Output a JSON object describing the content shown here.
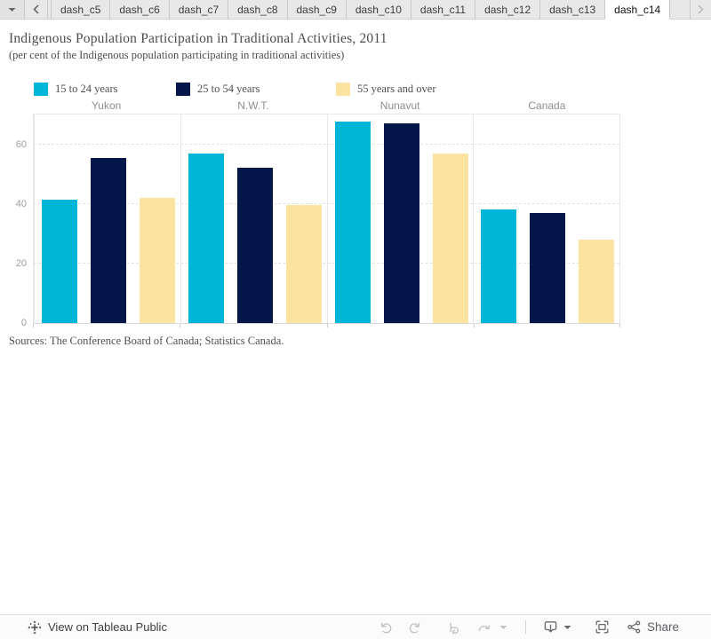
{
  "tab_bar": {
    "tabs": [
      "dash_c5",
      "dash_c6",
      "dash_c7",
      "dash_c8",
      "dash_c9",
      "dash_c10",
      "dash_c11",
      "dash_c12",
      "dash_c13",
      "dash_c14"
    ],
    "active_tab": "dash_c14"
  },
  "chart_data": {
    "type": "bar",
    "title": "Indigenous Population Participation in Traditional Activities, 2011",
    "subtitle": "(per cent of the Indigenous population participating in traditional activities)",
    "categories": [
      "Yukon",
      "N.W.T.",
      "Nunavut",
      "Canada"
    ],
    "series": [
      {
        "name": "15 to 24 years",
        "color": "#00b6d8",
        "values": [
          41.5,
          57,
          67.5,
          38
        ]
      },
      {
        "name": "25 to 54 years",
        "color": "#05164a",
        "values": [
          55.5,
          52,
          67,
          37
        ]
      },
      {
        "name": "55 years and over",
        "color": "#fce3a0",
        "values": [
          42,
          39.5,
          57,
          28
        ]
      }
    ],
    "ylim": [
      0,
      70
    ],
    "yticks": [
      0,
      20,
      40,
      60
    ],
    "grid": "horizontal-dashed",
    "legend_position": "top",
    "source": "Sources: The Conference Board of Canada; Statistics Canada."
  },
  "footer": {
    "view_label": "View on Tableau Public",
    "share_label": "Share",
    "icons": [
      "tableau-logo-icon",
      "undo-icon",
      "redo-icon",
      "replay-icon",
      "resume-icon",
      "download-icon",
      "fullscreen-icon",
      "share-icon"
    ]
  }
}
